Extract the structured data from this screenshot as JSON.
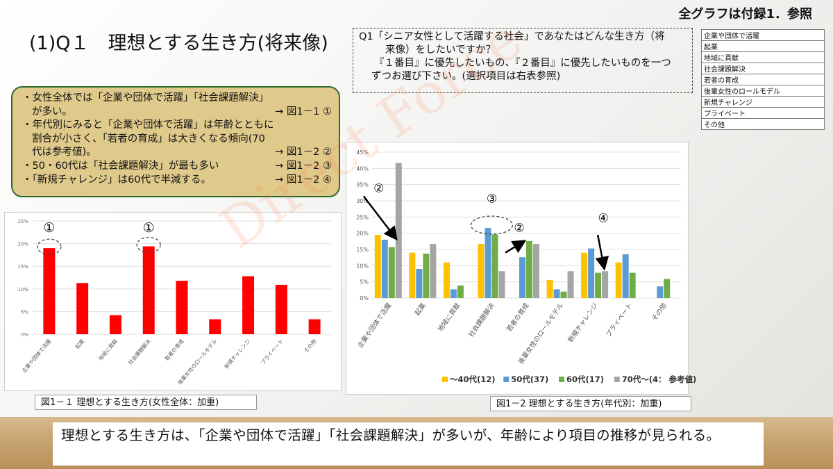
{
  "top_ref": "全グラフは付録1．参照",
  "page_title": "(1)Q１　理想とする生き方(将来像)",
  "question": {
    "line1": "Q1「シニア女性として活躍する社会」であなたはどんな生き方（将",
    "line2": "来像）をしたいですか？",
    "line3": "『１番目』に優先したいもの、『２番目』に優先したいものを一つ",
    "line4": "ずつお選び下さい。(選択項目は右表参照)"
  },
  "options": [
    "企業や団体で活躍",
    "起業",
    "地域に貢献",
    "社会課題解決",
    "若者の育成",
    "後輩女性のロールモデル",
    "新規チャレンジ",
    "プライベート",
    "その他"
  ],
  "summary": [
    {
      "text": "・女性全体では「企業や団体で活躍」「社会課題解決」",
      "ref": ""
    },
    {
      "text": "が多い。",
      "ref": "→ 図1－1 ①",
      "indent": true
    },
    {
      "text": "・年代別にみると「企業や団体で活躍」は年齢とともに",
      "ref": ""
    },
    {
      "text": "割合が小さく、「若者の育成」は大きくなる傾向(70",
      "ref": "",
      "indent": true
    },
    {
      "text": "代は参考値)。",
      "ref": "→ 図1－2 ②",
      "indent": true
    },
    {
      "text": "・50・60代は「社会課題解決」が最も多い",
      "ref": "→ 図1－2 ③"
    },
    {
      "text": "・「新規チャレンジ」は60代で半減する。",
      "ref": "→ 図1－2 ④"
    }
  ],
  "caption1": "図1－１ 理想とする生き方(女性全体：加重)",
  "caption2": "図1－2 理想とする生き方(年代別：加重)",
  "conclusion": "理想とする生き方は、「企業や団体で活躍」「社会課題解決」が多いが、年齢により項目の推移が見られる。",
  "watermark": "Direct Force",
  "colors": {
    "red": "#ff0000",
    "yellow": "#ffc000",
    "blue": "#5b9bd5",
    "green": "#70ad47",
    "gray": "#a5a5a5"
  },
  "chart_data": [
    {
      "type": "bar",
      "categories": [
        "企業や団体で活躍",
        "起業",
        "地域に貢献",
        "社会課題解決",
        "若者の育成",
        "後輩女性のロールモデル",
        "新規チャレンジ",
        "プライベート",
        "その他"
      ],
      "values": [
        19,
        11.3,
        4.2,
        19.4,
        11.8,
        3.3,
        12.8,
        10.9,
        3.3
      ],
      "ylim": [
        0,
        25
      ],
      "yticks": [
        "0%",
        "5%",
        "10%",
        "15%",
        "20%",
        "25%"
      ],
      "grid": true,
      "annotations": [
        {
          "label": "①",
          "category": "企業や団体で活躍"
        },
        {
          "label": "①",
          "category": "社会課題解決"
        }
      ]
    },
    {
      "type": "bar",
      "categories": [
        "企業や団体で活躍",
        "起業",
        "地域に貢献",
        "社会課題解決",
        "若者の育成",
        "後輩女性のロールモデル",
        "新規チャレンジ",
        "プライベート",
        "その他"
      ],
      "series": [
        {
          "name": "～40代(12)",
          "values": [
            19.5,
            14,
            11,
            16.7,
            0,
            5.6,
            14,
            11,
            0
          ]
        },
        {
          "name": "50代(37)",
          "values": [
            18,
            9,
            2.7,
            21.6,
            12.6,
            2.7,
            15.3,
            13.5,
            3.6
          ]
        },
        {
          "name": "60代(17)",
          "values": [
            15.7,
            13.7,
            3.9,
            19.6,
            17.6,
            2,
            7.8,
            7.8,
            5.9
          ]
        },
        {
          "name": "70代～(4： 参考値)",
          "values": [
            41.7,
            16.7,
            0,
            8.3,
            16.7,
            8.3,
            8.3,
            0,
            0
          ]
        }
      ],
      "ylim": [
        0,
        45
      ],
      "yticks": [
        "0%",
        "5%",
        "10%",
        "15%",
        "20%",
        "25%",
        "30%",
        "35%",
        "40%",
        "45%"
      ],
      "grid": true,
      "legend": "bottom",
      "annotations": [
        {
          "label": "②",
          "category": "企業や団体で活躍"
        },
        {
          "label": "③",
          "category": "社会課題解決"
        },
        {
          "label": "②",
          "category": "若者の育成"
        },
        {
          "label": "④",
          "category": "新規チャレンジ"
        }
      ]
    }
  ]
}
